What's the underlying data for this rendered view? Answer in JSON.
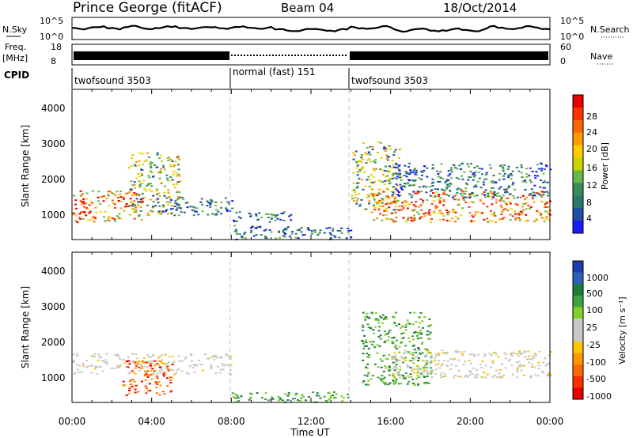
{
  "header": {
    "station": "Prince George (fitACF)",
    "beam": "Beam 04",
    "date": "18/Oct/2014"
  },
  "top_panels": {
    "nsky_label": "N.Sky",
    "nsky_ticks": [
      "10^5",
      "10^0"
    ],
    "nsearch_label": "N.Search",
    "nsearch_ticks": [
      "10^5",
      "10^0"
    ],
    "freq_label_1": "Freq.",
    "freq_label_2": "[MHz]",
    "freq_ticks": [
      "18",
      "8"
    ],
    "nave_label": "Nave",
    "nave_ticks": [
      "60",
      "0"
    ],
    "cpid_label": "CPID",
    "cpid_segments": [
      {
        "label": "twofsound 3503",
        "start_hr": 0,
        "end_hr": 8
      },
      {
        "label": "normal (fast) 151",
        "start_hr": 8,
        "end_hr": 14
      },
      {
        "label": "twofsound 3503",
        "start_hr": 14,
        "end_hr": 24
      }
    ]
  },
  "power_colorbar": {
    "label": "Power [dB]",
    "ticks": [
      "28",
      "24",
      "20",
      "16",
      "12",
      "8",
      "4"
    ],
    "colors": [
      "#e60000",
      "#ff3300",
      "#ff6600",
      "#ff9900",
      "#ffcc00",
      "#c8d400",
      "#6bb84a",
      "#3a8a5a",
      "#2a7a6a",
      "#1f4fa8",
      "#1a1aff"
    ]
  },
  "velocity_colorbar": {
    "label": "Velocity [m s⁻¹]",
    "ticks": [
      "1000",
      "500",
      "100",
      "25",
      "-25",
      "-100",
      "-500",
      "-1000"
    ],
    "colors": [
      "#1a3fb0",
      "#2f5fb8",
      "#1e7a3a",
      "#3fa33f",
      "#7fd02a",
      "#c8c8c8",
      "#c8c8c8",
      "#ffc400",
      "#ff9500",
      "#ff6a00",
      "#ff3000",
      "#e80000"
    ]
  },
  "chart_data": [
    {
      "type": "heatmap",
      "title": "Power",
      "ylabel": "Slant Range [km]",
      "ylim": [
        180,
        4500
      ],
      "yticks": [
        "4000",
        "3000",
        "2000",
        "1000"
      ],
      "regions": [
        {
          "t0": 0.0,
          "t1": 3.5,
          "r0": 700,
          "r1": 1600,
          "level": "high"
        },
        {
          "t0": 2.8,
          "t1": 5.5,
          "r0": 900,
          "r1": 2700,
          "level": "mid"
        },
        {
          "t0": 4.0,
          "t1": 8.0,
          "r0": 900,
          "r1": 1400,
          "level": "low"
        },
        {
          "t0": 8.0,
          "t1": 11.0,
          "r0": 700,
          "r1": 1000,
          "level": "low"
        },
        {
          "t0": 8.0,
          "t1": 14.0,
          "r0": 200,
          "r1": 600,
          "level": "low"
        },
        {
          "t0": 14.0,
          "t1": 16.5,
          "r0": 1000,
          "r1": 3000,
          "level": "mid"
        },
        {
          "t0": 15.0,
          "t1": 24.0,
          "r0": 700,
          "r1": 1600,
          "level": "high"
        },
        {
          "t0": 16.0,
          "t1": 24.0,
          "r0": 1400,
          "r1": 2400,
          "level": "low"
        }
      ]
    },
    {
      "type": "heatmap",
      "title": "Velocity",
      "ylabel": "Slant Range [km]",
      "xlabel": "Time UT",
      "ylim": [
        180,
        4500
      ],
      "yticks": [
        "4000",
        "3000",
        "2000",
        "1000"
      ],
      "xticks": [
        "00:00",
        "04:00",
        "08:00",
        "12:00",
        "16:00",
        "20:00",
        "00:00"
      ],
      "regions": [
        {
          "t0": 0.0,
          "t1": 8.0,
          "r0": 1000,
          "r1": 1600,
          "level": "ground"
        },
        {
          "t0": 2.5,
          "t1": 5.0,
          "r0": 400,
          "r1": 1400,
          "level": "away"
        },
        {
          "t0": 8.0,
          "t1": 14.0,
          "r0": 200,
          "r1": 500,
          "level": "toward"
        },
        {
          "t0": 14.5,
          "t1": 18.0,
          "r0": 700,
          "r1": 2800,
          "level": "toward"
        },
        {
          "t0": 16.0,
          "t1": 24.0,
          "r0": 900,
          "r1": 1700,
          "level": "ground"
        }
      ]
    }
  ]
}
